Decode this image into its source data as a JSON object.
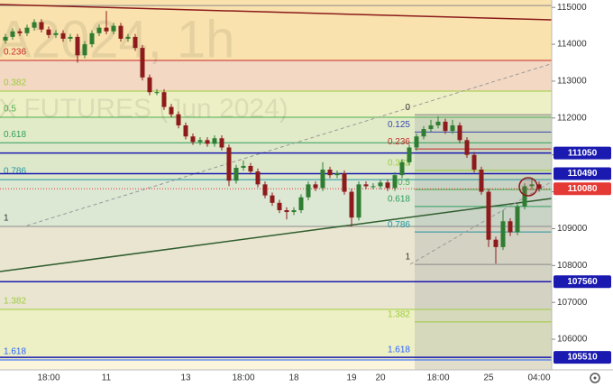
{
  "chart_data": {
    "type": "candlestick",
    "watermark": [
      "A2024, 1h",
      "X FUTURES (Jun 2024)"
    ],
    "categories": [
      null,
      null,
      null,
      null,
      null,
      null,
      "18:00",
      null,
      null,
      null,
      null,
      null,
      null,
      null,
      "11",
      null,
      null,
      null,
      null,
      null,
      null,
      null,
      null,
      null,
      null,
      "13",
      null,
      null,
      null,
      null,
      null,
      null,
      null,
      "18:00",
      null,
      null,
      null,
      null,
      null,
      null,
      "18",
      null,
      null,
      null,
      null,
      null,
      null,
      null,
      "19",
      null,
      null,
      null,
      "20",
      null,
      null,
      null,
      null,
      null,
      null,
      null,
      "18:00",
      null,
      null,
      null,
      null,
      null,
      null,
      "25",
      null,
      null,
      null,
      null,
      null,
      null,
      "04:00"
    ],
    "open": [
      114100,
      114200,
      114350,
      114300,
      114450,
      114600,
      114400,
      114250,
      114300,
      114150,
      114200,
      113700,
      114000,
      114300,
      114450,
      114350,
      114500,
      114150,
      114200,
      113900,
      113100,
      112700,
      112700,
      112300,
      112100,
      111800,
      111500,
      111350,
      111400,
      111300,
      111450,
      111200,
      110300,
      110650,
      110700,
      110550,
      110200,
      109900,
      109700,
      109500,
      109450,
      109500,
      109850,
      110200,
      110100,
      110600,
      110450,
      110500,
      110000,
      109300,
      110200,
      110150,
      110150,
      110250,
      110100,
      110450,
      110800,
      111200,
      111500,
      111700,
      111800,
      111900,
      111650,
      111800,
      111400,
      111000,
      110600,
      110000,
      108700,
      108500,
      109200,
      108900,
      109600,
      110150,
      110200
    ],
    "high": [
      114280,
      114430,
      114430,
      114530,
      114680,
      114680,
      114480,
      114380,
      114380,
      114280,
      114280,
      114080,
      114380,
      114530,
      114900,
      114580,
      114580,
      114280,
      114280,
      113980,
      113180,
      112780,
      112780,
      112380,
      112180,
      111880,
      111580,
      111480,
      111480,
      111530,
      111530,
      111280,
      110730,
      110850,
      110780,
      110630,
      110280,
      109980,
      109780,
      109580,
      109580,
      109930,
      110280,
      110280,
      110800,
      110680,
      110580,
      110580,
      110080,
      110280,
      110280,
      110230,
      110330,
      110330,
      110530,
      110880,
      111280,
      111580,
      111780,
      111950,
      112050,
      111980,
      111950,
      111880,
      111480,
      111080,
      110680,
      110080,
      108780,
      109500,
      109280,
      109680,
      110230,
      110350,
      110280
    ],
    "low": [
      114020,
      114120,
      114220,
      114220,
      114370,
      114320,
      114170,
      114170,
      114070,
      114070,
      113500,
      113620,
      113920,
      114220,
      114270,
      114270,
      114070,
      114070,
      113820,
      113020,
      112620,
      112620,
      112220,
      112020,
      111720,
      111420,
      111270,
      111270,
      111220,
      111220,
      111120,
      110150,
      110220,
      110570,
      110470,
      110120,
      109820,
      109620,
      109420,
      109250,
      109370,
      109420,
      109770,
      110020,
      110020,
      110370,
      110370,
      109920,
      109050,
      109220,
      110070,
      110070,
      110070,
      110020,
      110020,
      110370,
      110720,
      111120,
      111420,
      111620,
      111720,
      111570,
      111570,
      111320,
      110920,
      110520,
      109920,
      108500,
      108050,
      108420,
      108800,
      108820,
      109520,
      110070,
      110000
    ],
    "close": [
      114200,
      114350,
      114300,
      114450,
      114600,
      114400,
      114250,
      114300,
      114150,
      114200,
      113700,
      114000,
      114300,
      114450,
      114350,
      114500,
      114150,
      114200,
      113900,
      113100,
      112700,
      112700,
      112300,
      112100,
      111800,
      111500,
      111350,
      111400,
      111300,
      111450,
      111200,
      110300,
      110650,
      110700,
      110550,
      110200,
      109900,
      109700,
      109500,
      109450,
      109500,
      109850,
      110200,
      110100,
      110600,
      110450,
      110500,
      110000,
      109300,
      110200,
      110150,
      110150,
      110250,
      110100,
      110450,
      110800,
      111200,
      111500,
      111700,
      111800,
      111900,
      111650,
      111800,
      111400,
      111000,
      110600,
      110000,
      108700,
      108500,
      109200,
      108900,
      109600,
      110150,
      110200,
      110080
    ],
    "up_color": "#2e7d32",
    "down_color": "#8e1b1b",
    "ylim": [
      105170,
      115200
    ],
    "yticks": [
      106000,
      107000,
      108000,
      109000,
      110000,
      111000,
      112000,
      113000,
      114000,
      115000
    ],
    "fibs": [
      {
        "levels": [
          {
            "ratio": 0,
            "price": 115050,
            "color": "#8a8a8a"
          },
          {
            "ratio": 0.236,
            "price": 113560,
            "color": "#c62828"
          },
          {
            "ratio": 0.382,
            "price": 112730,
            "color": "#9ccc3c"
          },
          {
            "ratio": 0.5,
            "price": 112020,
            "color": "#4caf50"
          },
          {
            "ratio": 0.618,
            "price": 111330,
            "color": "#2e9e5e"
          },
          {
            "ratio": 0.786,
            "price": 110330,
            "color": "#2196a3"
          },
          {
            "ratio": 1,
            "price": 109060,
            "color": "#8a8a8a"
          },
          {
            "ratio": 1.382,
            "price": 106810,
            "color": "#9ccc3c"
          },
          {
            "ratio": 1.618,
            "price": 105440,
            "color": "#2962ff"
          }
        ]
      },
      {
        "levels": [
          {
            "ratio": 0,
            "price": 112090,
            "color": "#8a8a8a"
          },
          {
            "ratio": 0.125,
            "price": 111620,
            "color": "#3949ab"
          },
          {
            "ratio": 0.236,
            "price": 111160,
            "color": "#c62828"
          },
          {
            "ratio": 0.382,
            "price": 110580,
            "color": "#9ccc3c"
          },
          {
            "ratio": 0.5,
            "price": 110060,
            "color": "#4caf50"
          },
          {
            "ratio": 0.618,
            "price": 109600,
            "color": "#2e9e5e"
          },
          {
            "ratio": 0.786,
            "price": 108910,
            "color": "#2196a3"
          },
          {
            "ratio": 1,
            "price": 108030,
            "color": "#8a8a8a"
          },
          {
            "ratio": 1.382,
            "price": 106470,
            "color": "#9ccc3c"
          },
          {
            "ratio": 1.618,
            "price": 105510,
            "color": "#2962ff"
          }
        ]
      }
    ],
    "price_levels": [
      {
        "value": 111050,
        "color": "#1a1ab0"
      },
      {
        "value": 110490,
        "color": "#1a1ab0"
      },
      {
        "value": 107560,
        "color": "#1a1ab0"
      },
      {
        "value": 105510,
        "color": "#1a1ab0"
      }
    ],
    "last_price": 110080,
    "last_color": "#e53935"
  }
}
